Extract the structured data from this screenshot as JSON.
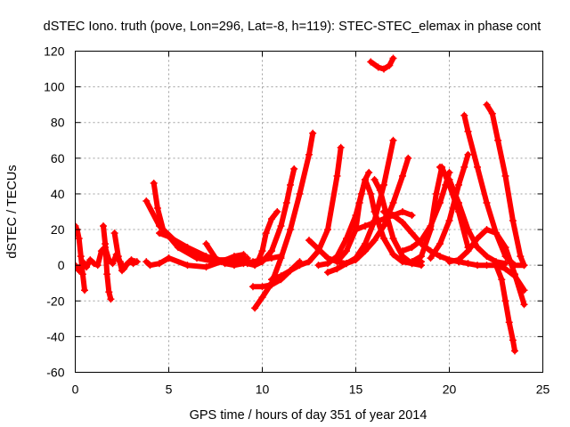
{
  "chart_data": {
    "type": "scatter",
    "title": "dSTEC Iono. truth (pove, Lon=296, Lat=-8, h=119): STEC-STEC_elemax in phase cont",
    "xlabel": "GPS time / hours of day 351 of year 2014",
    "ylabel": "dSTEC  / TECUs",
    "xlim": [
      0,
      25
    ],
    "ylim": [
      -60,
      120
    ],
    "xticks": [
      0,
      5,
      10,
      15,
      20,
      25
    ],
    "yticks": [
      -60,
      -40,
      -20,
      0,
      20,
      40,
      60,
      80,
      100,
      120
    ],
    "grid": true,
    "marker": "+",
    "color": "#ff0000",
    "series": [
      {
        "x": [
          0.0,
          0.1,
          0.2,
          0.3,
          0.4,
          0.5
        ],
        "y": [
          22,
          20,
          15,
          5,
          -5,
          -14
        ]
      },
      {
        "x": [
          0.0,
          0.2,
          0.4,
          0.6,
          0.8,
          1.0,
          1.2,
          1.4,
          1.6,
          1.8,
          2.0,
          2.2,
          2.4,
          2.6,
          2.8,
          3.0,
          3.2
        ],
        "y": [
          0,
          -3,
          2,
          -1,
          3,
          1,
          0,
          8,
          10,
          3,
          1,
          6,
          2,
          -2,
          1,
          3,
          2
        ]
      },
      {
        "x": [
          1.5,
          1.6,
          1.7,
          1.8,
          1.9
        ],
        "y": [
          22,
          12,
          -5,
          -15,
          -19
        ]
      },
      {
        "x": [
          2.1,
          2.3,
          2.5,
          2.7,
          2.9,
          3.1,
          3.3
        ],
        "y": [
          18,
          5,
          -3,
          0,
          2,
          1,
          2
        ]
      },
      {
        "x": [
          3.8,
          4.5,
          5.5,
          6.5,
          7.5,
          8.5,
          9.2
        ],
        "y": [
          36,
          22,
          12,
          6,
          3,
          3,
          4
        ]
      },
      {
        "x": [
          4.2,
          4.4,
          4.7,
          5.5,
          6.5,
          7.5,
          8.5
        ],
        "y": [
          46,
          32,
          20,
          10,
          4,
          2,
          4
        ]
      },
      {
        "x": [
          4.5,
          5.0,
          6.0,
          7.0,
          8.0,
          9.0
        ],
        "y": [
          18,
          16,
          10,
          5,
          2,
          3
        ]
      },
      {
        "x": [
          3.8,
          4.0,
          4.5,
          5.0
        ],
        "y": [
          2,
          0,
          1,
          4
        ]
      },
      {
        "x": [
          5.0,
          6.0,
          7.0,
          7.8,
          8.5,
          9.0
        ],
        "y": [
          4,
          0,
          -1,
          2,
          5,
          6
        ]
      },
      {
        "x": [
          7.0,
          7.5,
          8.0,
          8.5,
          9.0,
          9.5,
          10.0,
          10.5,
          11.0
        ],
        "y": [
          12,
          4,
          1,
          0,
          1,
          2,
          3,
          4,
          5
        ]
      },
      {
        "x": [
          9.0,
          9.3,
          9.6,
          9.8,
          10.0,
          10.2,
          10.5,
          10.8
        ],
        "y": [
          3,
          2,
          1,
          3,
          8,
          18,
          26,
          30
        ]
      },
      {
        "x": [
          9.6,
          10.0,
          10.5,
          11.0,
          11.5,
          12.0,
          12.5,
          12.7
        ],
        "y": [
          -24,
          -18,
          -10,
          4,
          20,
          40,
          62,
          74
        ]
      },
      {
        "x": [
          9.5,
          10.0,
          10.5,
          11.0,
          11.5,
          12.0
        ],
        "y": [
          -12,
          -12,
          -11,
          -8,
          -3,
          2
        ]
      },
      {
        "x": [
          9.2,
          9.6,
          10.0,
          10.5,
          11.0,
          11.3,
          11.5,
          11.7
        ],
        "y": [
          1,
          0,
          2,
          8,
          22,
          35,
          45,
          54
        ]
      },
      {
        "x": [
          10.5,
          11.0,
          11.5,
          12.0,
          12.5,
          13.0,
          13.5,
          14.0,
          14.2
        ],
        "y": [
          -8,
          -6,
          -3,
          0,
          2,
          8,
          20,
          50,
          66
        ]
      },
      {
        "x": [
          12.5,
          13.0,
          13.5,
          14.0,
          14.5,
          15.0,
          15.5,
          16.0,
          16.5,
          17.0
        ],
        "y": [
          14,
          9,
          4,
          2,
          1,
          4,
          12,
          25,
          45,
          70
        ]
      },
      {
        "x": [
          13.0,
          13.5,
          14.0,
          14.5,
          15.0,
          15.3,
          15.5,
          15.7
        ],
        "y": [
          0,
          1,
          5,
          15,
          28,
          40,
          48,
          52
        ]
      },
      {
        "x": [
          13.5,
          14.0,
          14.5,
          15.0,
          15.5,
          16.0,
          16.5,
          17.0,
          17.5,
          17.8
        ],
        "y": [
          -4,
          -2,
          1,
          3,
          8,
          14,
          22,
          35,
          50,
          60
        ]
      },
      {
        "x": [
          14.0,
          14.5,
          15.0,
          15.2,
          15.5,
          15.8,
          16.0,
          16.5,
          17.0,
          17.5,
          18.0,
          18.5
        ],
        "y": [
          2,
          8,
          20,
          35,
          48,
          40,
          30,
          15,
          6,
          2,
          1,
          2
        ]
      },
      {
        "x": [
          15.0,
          15.5,
          16.0,
          16.5,
          17.0,
          17.5,
          18.0
        ],
        "y": [
          20,
          22,
          24,
          26,
          28,
          30,
          28
        ]
      },
      {
        "x": [
          15.8,
          16.2,
          16.5,
          16.8,
          17.0
        ],
        "y": [
          114,
          111,
          110,
          112,
          116
        ]
      },
      {
        "x": [
          16.0,
          16.3,
          16.6,
          17.0,
          17.5,
          18.0,
          18.5
        ],
        "y": [
          48,
          42,
          30,
          15,
          5,
          1,
          0
        ]
      },
      {
        "x": [
          16.5,
          17.0,
          17.5,
          18.0,
          18.5,
          19.0,
          19.5,
          20.0,
          20.5
        ],
        "y": [
          30,
          28,
          24,
          18,
          12,
          8,
          5,
          3,
          2
        ]
      },
      {
        "x": [
          17.5,
          18.0,
          18.5,
          19.0,
          19.5,
          19.8,
          20.0
        ],
        "y": [
          8,
          10,
          14,
          22,
          35,
          45,
          52
        ]
      },
      {
        "x": [
          18.0,
          18.5,
          19.0,
          19.3,
          19.6,
          20.0,
          20.5,
          21.0
        ],
        "y": [
          2,
          5,
          20,
          40,
          55,
          45,
          30,
          10
        ]
      },
      {
        "x": [
          19.0,
          19.5,
          20.0,
          20.5,
          20.8,
          21.0
        ],
        "y": [
          4,
          12,
          25,
          45,
          55,
          62
        ]
      },
      {
        "x": [
          19.5,
          20.0,
          20.5,
          21.0,
          21.5,
          22.0,
          22.5,
          23.0
        ],
        "y": [
          55,
          48,
          35,
          20,
          10,
          5,
          2,
          1
        ]
      },
      {
        "x": [
          20.0,
          20.5,
          21.0,
          21.5,
          22.0,
          22.5,
          23.0
        ],
        "y": [
          2,
          3,
          8,
          15,
          20,
          18,
          10
        ]
      },
      {
        "x": [
          20.5,
          21.0,
          21.5,
          22.0,
          22.5,
          23.0,
          23.5,
          24.0
        ],
        "y": [
          2,
          1,
          0,
          0,
          0,
          -2,
          -6,
          -14
        ]
      },
      {
        "x": [
          20.8,
          21.0,
          21.5,
          22.0,
          22.5,
          23.0,
          23.5,
          24.0
        ],
        "y": [
          84,
          75,
          55,
          35,
          18,
          5,
          0,
          0
        ]
      },
      {
        "x": [
          22.0,
          22.3,
          22.6,
          23.0,
          23.4,
          23.8,
          24.0
        ],
        "y": [
          90,
          85,
          70,
          50,
          25,
          5,
          0
        ]
      },
      {
        "x": [
          22.5,
          22.8,
          23.0,
          23.2,
          23.4,
          23.5
        ],
        "y": [
          0,
          -8,
          -20,
          -32,
          -42,
          -48
        ]
      },
      {
        "x": [
          22.5,
          23.0,
          23.5,
          24.0
        ],
        "y": [
          18,
          10,
          -5,
          -22
        ]
      }
    ]
  }
}
